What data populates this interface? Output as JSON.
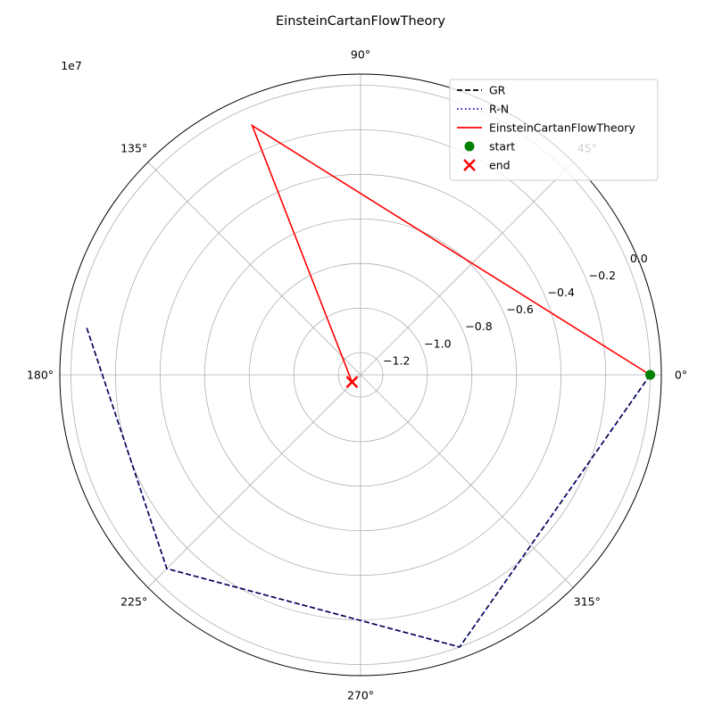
{
  "chart_data": {
    "type": "polar-line",
    "title": "EinsteinCartanFlowTheory",
    "offset_text": "1e7",
    "angle_ticks": [
      {
        "deg": 0,
        "label": "0°"
      },
      {
        "deg": 45,
        "label": "45°"
      },
      {
        "deg": 90,
        "label": "90°"
      },
      {
        "deg": 135,
        "label": "135°"
      },
      {
        "deg": 180,
        "label": "180°"
      },
      {
        "deg": 225,
        "label": "225°"
      },
      {
        "deg": 270,
        "label": "270°"
      },
      {
        "deg": 315,
        "label": "315°"
      }
    ],
    "rlim": [
      -1.3,
      0.05
    ],
    "r_ticks": [
      {
        "value": -1.2,
        "label": "−1.2"
      },
      {
        "value": -1.0,
        "label": "−1.0"
      },
      {
        "value": -0.8,
        "label": "−0.8"
      },
      {
        "value": -0.6,
        "label": "−0.6"
      },
      {
        "value": -0.4,
        "label": "−0.4"
      },
      {
        "value": -0.2,
        "label": "−0.2"
      },
      {
        "value": 0.0,
        "label": "0.0"
      }
    ],
    "r_label_angle_deg": 22.5,
    "grid": true,
    "legend_position": "top-right",
    "series": [
      {
        "name": "GR",
        "color": "#000000",
        "style": "dashed",
        "points": [
          {
            "theta_deg": 0,
            "r": 0.0
          },
          {
            "theta_deg": 290,
            "r": -0.0
          },
          {
            "theta_deg": 225,
            "r": -0.07
          },
          {
            "theta_deg": 170,
            "r": -0.05
          }
        ]
      },
      {
        "name": "R-N",
        "color": "#0000cc",
        "style": "dotted",
        "points": [
          {
            "theta_deg": 0,
            "r": 0.0
          },
          {
            "theta_deg": 290,
            "r": -0.0
          },
          {
            "theta_deg": 225,
            "r": -0.07
          },
          {
            "theta_deg": 170,
            "r": -0.05
          }
        ]
      },
      {
        "name": "EinsteinCartanFlowTheory",
        "color": "#ff0000",
        "style": "solid",
        "points": [
          {
            "theta_deg": 0,
            "r": 0.0
          },
          {
            "theta_deg": 113.5,
            "r": -0.08
          },
          {
            "theta_deg": 220,
            "r": -1.25
          }
        ]
      }
    ],
    "markers": [
      {
        "name": "start",
        "shape": "circle",
        "color": "#008000",
        "theta_deg": 0,
        "r": 0.0
      },
      {
        "name": "end",
        "shape": "x",
        "color": "#ff0000",
        "theta_deg": 220,
        "r": -1.25
      }
    ]
  }
}
